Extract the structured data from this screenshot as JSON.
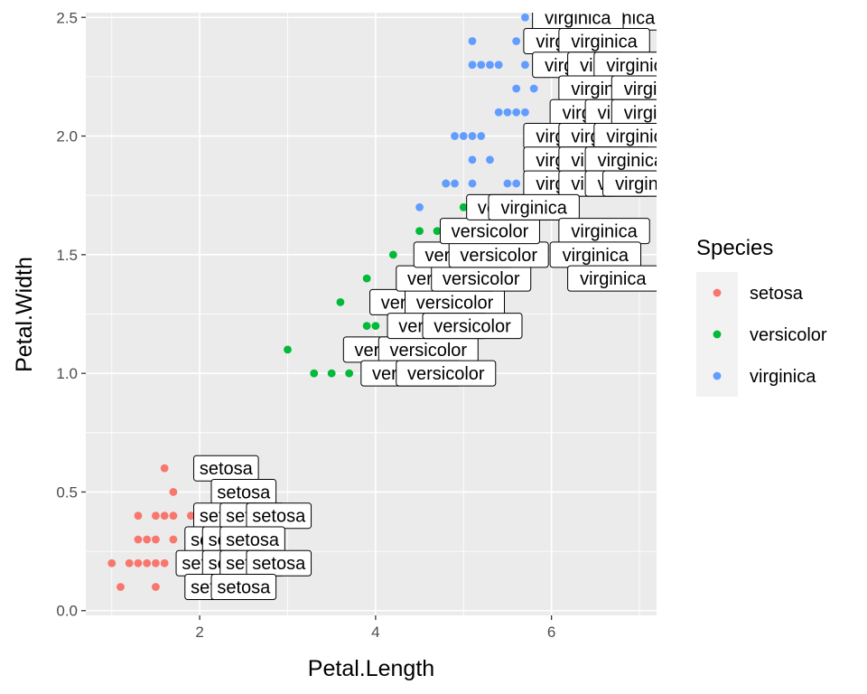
{
  "chart_data": {
    "type": "scatter",
    "title": "",
    "xlabel": "Petal.Length",
    "ylabel": "Petal.Width",
    "xlim": [
      0.705,
      7.195
    ],
    "ylim": [
      -0.02,
      2.52
    ],
    "x_ticks": [
      2,
      4,
      6
    ],
    "y_ticks": [
      "0.0",
      "0.5",
      "1.0",
      "1.5",
      "2.0",
      "2.5"
    ],
    "grid": true,
    "legend": {
      "title": "Species",
      "position": "right",
      "entries": [
        {
          "name": "setosa",
          "color": "#F8766D"
        },
        {
          "name": "versicolor",
          "color": "#00BA38"
        },
        {
          "name": "virginica",
          "color": "#619CFF"
        }
      ]
    },
    "panel_color": "#EBEBEB",
    "grid_color": "#FFFFFF",
    "series": [
      {
        "name": "setosa",
        "color": "#F8766D",
        "points": [
          [
            1.0,
            0.2
          ],
          [
            1.1,
            0.1
          ],
          [
            1.2,
            0.2
          ],
          [
            1.3,
            0.2
          ],
          [
            1.3,
            0.3
          ],
          [
            1.3,
            0.4
          ],
          [
            1.4,
            0.2
          ],
          [
            1.4,
            0.3
          ],
          [
            1.5,
            0.1
          ],
          [
            1.5,
            0.2
          ],
          [
            1.5,
            0.3
          ],
          [
            1.5,
            0.4
          ],
          [
            1.6,
            0.2
          ],
          [
            1.6,
            0.4
          ],
          [
            1.6,
            0.6
          ],
          [
            1.7,
            0.3
          ],
          [
            1.7,
            0.4
          ],
          [
            1.7,
            0.5
          ],
          [
            1.9,
            0.2
          ],
          [
            1.9,
            0.4
          ]
        ],
        "labels": [
          [
            2.3,
            0.6
          ],
          [
            2.5,
            0.5
          ],
          [
            2.3,
            0.4
          ],
          [
            2.6,
            0.4
          ],
          [
            2.9,
            0.4
          ],
          [
            2.2,
            0.3
          ],
          [
            2.4,
            0.3
          ],
          [
            2.6,
            0.3
          ],
          [
            2.1,
            0.2
          ],
          [
            2.4,
            0.2
          ],
          [
            2.6,
            0.2
          ],
          [
            2.9,
            0.2
          ],
          [
            2.2,
            0.1
          ],
          [
            2.5,
            0.1
          ]
        ]
      },
      {
        "name": "versicolor",
        "color": "#00BA38",
        "points": [
          [
            3.0,
            1.1
          ],
          [
            3.3,
            1.0
          ],
          [
            3.5,
            1.0
          ],
          [
            3.6,
            1.3
          ],
          [
            3.7,
            1.0
          ],
          [
            3.8,
            1.1
          ],
          [
            3.9,
            1.1
          ],
          [
            3.9,
            1.2
          ],
          [
            3.9,
            1.4
          ],
          [
            4.0,
            1.0
          ],
          [
            4.0,
            1.2
          ],
          [
            4.0,
            1.3
          ],
          [
            4.1,
            1.0
          ],
          [
            4.1,
            1.3
          ],
          [
            4.2,
            1.2
          ],
          [
            4.2,
            1.3
          ],
          [
            4.2,
            1.5
          ],
          [
            4.3,
            1.3
          ],
          [
            4.4,
            1.2
          ],
          [
            4.4,
            1.3
          ],
          [
            4.4,
            1.4
          ],
          [
            4.5,
            1.3
          ],
          [
            4.5,
            1.5
          ],
          [
            4.5,
            1.6
          ],
          [
            4.6,
            1.3
          ],
          [
            4.6,
            1.4
          ],
          [
            4.6,
            1.5
          ],
          [
            4.7,
            1.2
          ],
          [
            4.7,
            1.4
          ],
          [
            4.7,
            1.6
          ],
          [
            4.8,
            1.4
          ],
          [
            4.8,
            1.8
          ],
          [
            4.9,
            1.5
          ],
          [
            5.0,
            1.7
          ],
          [
            5.1,
            1.6
          ]
        ],
        "labels": [
          [
            4.2,
            1.1
          ],
          [
            4.6,
            1.1
          ],
          [
            4.4,
            1.0
          ],
          [
            4.8,
            1.0
          ],
          [
            4.5,
            1.3
          ],
          [
            4.9,
            1.3
          ],
          [
            4.7,
            1.2
          ],
          [
            5.1,
            1.2
          ],
          [
            4.8,
            1.4
          ],
          [
            5.2,
            1.4
          ],
          [
            5.0,
            1.5
          ],
          [
            5.4,
            1.5
          ],
          [
            5.3,
            1.6
          ],
          [
            5.6,
            1.7
          ]
        ]
      },
      {
        "name": "virginica",
        "color": "#619CFF",
        "points": [
          [
            4.5,
            1.7
          ],
          [
            4.8,
            1.8
          ],
          [
            4.9,
            1.8
          ],
          [
            4.9,
            2.0
          ],
          [
            5.0,
            1.5
          ],
          [
            5.0,
            2.0
          ],
          [
            5.1,
            1.5
          ],
          [
            5.1,
            1.8
          ],
          [
            5.1,
            1.9
          ],
          [
            5.1,
            2.0
          ],
          [
            5.1,
            2.3
          ],
          [
            5.1,
            2.4
          ],
          [
            5.2,
            2.0
          ],
          [
            5.2,
            2.3
          ],
          [
            5.3,
            1.9
          ],
          [
            5.3,
            2.3
          ],
          [
            5.4,
            2.1
          ],
          [
            5.4,
            2.3
          ],
          [
            5.5,
            1.8
          ],
          [
            5.5,
            2.1
          ],
          [
            5.6,
            1.8
          ],
          [
            5.6,
            2.1
          ],
          [
            5.6,
            2.2
          ],
          [
            5.6,
            2.4
          ],
          [
            5.7,
            2.1
          ],
          [
            5.7,
            2.3
          ],
          [
            5.7,
            2.5
          ],
          [
            5.8,
            1.6
          ],
          [
            5.8,
            2.2
          ],
          [
            6.0,
            2.5
          ],
          [
            6.1,
            2.5
          ]
        ],
        "labels": [
          [
            6.8,
            2.5
          ],
          [
            6.3,
            2.5
          ],
          [
            6.2,
            2.4
          ],
          [
            6.6,
            2.4
          ],
          [
            6.3,
            2.3
          ],
          [
            6.7,
            2.3
          ],
          [
            7.0,
            2.3
          ],
          [
            6.6,
            2.2
          ],
          [
            7.2,
            2.2
          ],
          [
            6.5,
            2.1
          ],
          [
            6.9,
            2.1
          ],
          [
            7.2,
            2.1
          ],
          [
            6.2,
            2.0
          ],
          [
            6.6,
            2.0
          ],
          [
            7.0,
            2.0
          ],
          [
            6.2,
            1.9
          ],
          [
            6.6,
            1.9
          ],
          [
            6.9,
            1.9
          ],
          [
            6.2,
            1.8
          ],
          [
            6.6,
            1.8
          ],
          [
            6.9,
            1.8
          ],
          [
            7.1,
            1.8
          ],
          [
            5.8,
            1.7
          ],
          [
            6.6,
            1.6
          ],
          [
            6.5,
            1.5
          ],
          [
            6.7,
            1.4
          ]
        ]
      }
    ]
  }
}
